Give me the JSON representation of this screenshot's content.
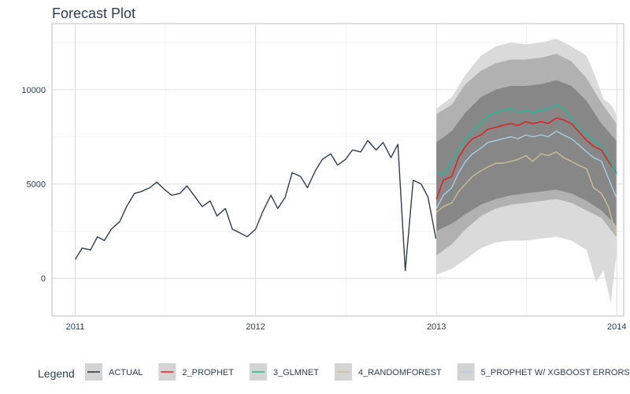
{
  "chart_data": {
    "type": "line",
    "title": "Forecast Plot",
    "xlabel": "",
    "ylabel": "",
    "x_ticks": [
      "2011",
      "2012",
      "2013",
      "2014"
    ],
    "y_ticks": [
      0,
      5000,
      10000
    ],
    "xlim": [
      "2010-11-15",
      "2014-01-15"
    ],
    "ylim": [
      -2000,
      13500
    ],
    "grid": true,
    "legend_position": "bottom",
    "legend_title": "Legend",
    "series": [
      {
        "name": "ACTUAL",
        "color": "#2c3e50",
        "x": [
          "2011-01-01",
          "2011-01-15",
          "2011-02-01",
          "2011-02-15",
          "2011-03-01",
          "2011-03-15",
          "2011-04-01",
          "2011-04-15",
          "2011-05-01",
          "2011-05-15",
          "2011-06-01",
          "2011-06-15",
          "2011-07-01",
          "2011-07-15",
          "2011-08-01",
          "2011-08-15",
          "2011-09-01",
          "2011-09-15",
          "2011-10-01",
          "2011-10-15",
          "2011-11-01",
          "2011-11-15",
          "2011-12-01",
          "2011-12-15",
          "2012-01-01",
          "2012-01-15",
          "2012-02-01",
          "2012-02-15",
          "2012-03-01",
          "2012-03-15",
          "2012-04-01",
          "2012-04-15",
          "2012-05-01",
          "2012-05-15",
          "2012-06-01",
          "2012-06-15",
          "2012-07-01",
          "2012-07-15",
          "2012-08-01",
          "2012-08-15",
          "2012-09-01",
          "2012-09-15",
          "2012-10-01",
          "2012-10-15",
          "2012-10-30",
          "2012-11-15",
          "2012-12-01",
          "2012-12-15",
          "2012-12-31"
        ],
        "values": [
          1000,
          1600,
          1500,
          2200,
          2000,
          2600,
          3000,
          3800,
          4500,
          4600,
          4800,
          5100,
          4700,
          4400,
          4500,
          4900,
          4300,
          3800,
          4100,
          3300,
          3700,
          2600,
          2400,
          2200,
          2600,
          3500,
          4400,
          3700,
          4300,
          5600,
          5400,
          4800,
          5700,
          6300,
          6600,
          6000,
          6300,
          6800,
          6700,
          7300,
          6800,
          7200,
          6400,
          7100,
          400,
          5200,
          5000,
          4300,
          2100
        ]
      },
      {
        "name": "2_PROPHET",
        "color": "#e31a1c",
        "x": [
          "2013-01-01",
          "2013-01-15",
          "2013-02-01",
          "2013-02-15",
          "2013-03-01",
          "2013-03-15",
          "2013-04-01",
          "2013-04-15",
          "2013-05-01",
          "2013-05-15",
          "2013-06-01",
          "2013-06-15",
          "2013-07-01",
          "2013-07-15",
          "2013-08-01",
          "2013-08-15",
          "2013-09-01",
          "2013-09-15",
          "2013-10-01",
          "2013-10-15",
          "2013-11-01",
          "2013-11-15",
          "2013-12-01",
          "2013-12-15",
          "2013-12-31"
        ],
        "values": [
          4200,
          5200,
          5400,
          6400,
          7000,
          7400,
          7600,
          7900,
          8000,
          8100,
          8200,
          8100,
          8300,
          8200,
          8300,
          8200,
          8500,
          8400,
          8200,
          7800,
          7300,
          7000,
          6800,
          6200,
          5600
        ]
      },
      {
        "name": "3_GLMNET",
        "color": "#18bc9c",
        "x": [
          "2013-01-01",
          "2013-01-15",
          "2013-02-01",
          "2013-02-15",
          "2013-03-01",
          "2013-03-15",
          "2013-04-01",
          "2013-04-15",
          "2013-05-01",
          "2013-05-15",
          "2013-06-01",
          "2013-06-15",
          "2013-07-01",
          "2013-07-15",
          "2013-08-01",
          "2013-08-15",
          "2013-09-01",
          "2013-09-15",
          "2013-10-01",
          "2013-10-15",
          "2013-11-01",
          "2013-11-15",
          "2013-12-01",
          "2013-12-15",
          "2013-12-31"
        ],
        "values": [
          5600,
          5500,
          6200,
          6800,
          7400,
          7800,
          8200,
          8600,
          8800,
          8900,
          9000,
          8800,
          8900,
          8800,
          8900,
          9000,
          9200,
          9000,
          8500,
          8000,
          7600,
          7300,
          7000,
          6400,
          5500
        ]
      },
      {
        "name": "4_RANDOMFOREST",
        "color": "#ccbe93",
        "x": [
          "2013-01-01",
          "2013-01-15",
          "2013-02-01",
          "2013-02-15",
          "2013-03-01",
          "2013-03-15",
          "2013-04-01",
          "2013-04-15",
          "2013-05-01",
          "2013-05-15",
          "2013-06-01",
          "2013-06-15",
          "2013-07-01",
          "2013-07-15",
          "2013-08-01",
          "2013-08-15",
          "2013-09-01",
          "2013-09-15",
          "2013-10-01",
          "2013-10-15",
          "2013-11-01",
          "2013-11-15",
          "2013-12-01",
          "2013-12-15",
          "2013-12-31"
        ],
        "values": [
          3500,
          3800,
          4000,
          4600,
          5000,
          5400,
          5700,
          5900,
          6100,
          6100,
          6200,
          6300,
          6500,
          6200,
          6600,
          6500,
          6700,
          6400,
          6200,
          6000,
          5800,
          4800,
          4500,
          3800,
          2300
        ]
      },
      {
        "name": "5_PROPHET W/ XGBOOST ERRORS",
        "color": "#a6cee3",
        "x": [
          "2013-01-01",
          "2013-01-15",
          "2013-02-01",
          "2013-02-15",
          "2013-03-01",
          "2013-03-15",
          "2013-04-01",
          "2013-04-15",
          "2013-05-01",
          "2013-05-15",
          "2013-06-01",
          "2013-06-15",
          "2013-07-01",
          "2013-07-15",
          "2013-08-01",
          "2013-08-15",
          "2013-09-01",
          "2013-09-15",
          "2013-10-01",
          "2013-10-15",
          "2013-11-01",
          "2013-11-15",
          "2013-12-01",
          "2013-12-15",
          "2013-12-31"
        ],
        "values": [
          3700,
          4400,
          4800,
          5600,
          6200,
          6600,
          6900,
          7200,
          7300,
          7400,
          7500,
          7400,
          7600,
          7500,
          7600,
          7500,
          7800,
          7600,
          7400,
          7100,
          6700,
          6400,
          6200,
          5300,
          4300
        ]
      }
    ],
    "bands": [
      {
        "name": "outer-interval",
        "color": "#d4d4d4",
        "x": [
          "2013-01-01",
          "2013-02-01",
          "2013-03-01",
          "2013-04-01",
          "2013-05-01",
          "2013-06-01",
          "2013-07-01",
          "2013-08-01",
          "2013-09-01",
          "2013-10-01",
          "2013-11-01",
          "2013-11-20",
          "2013-12-05",
          "2013-12-20",
          "2013-12-31"
        ],
        "lower": [
          200,
          500,
          1000,
          1600,
          1900,
          2000,
          2000,
          2100,
          2200,
          2000,
          1500,
          -200,
          400,
          -1300,
          1200
        ],
        "upper": [
          9000,
          9600,
          10800,
          11800,
          12300,
          12500,
          12400,
          12500,
          12700,
          12300,
          11800,
          10600,
          9500,
          9200,
          8700
        ]
      },
      {
        "name": "middle-interval",
        "color": "#a9a9a9",
        "x": [
          "2013-01-01",
          "2013-02-01",
          "2013-03-01",
          "2013-04-01",
          "2013-05-01",
          "2013-06-01",
          "2013-07-01",
          "2013-08-01",
          "2013-09-01",
          "2013-10-01",
          "2013-11-01",
          "2013-12-01",
          "2013-12-31"
        ],
        "lower": [
          1200,
          1800,
          2600,
          3300,
          3700,
          3900,
          4000,
          4100,
          4200,
          4000,
          3600,
          3200,
          2200
        ],
        "upper": [
          8700,
          9200,
          10300,
          11000,
          11400,
          11600,
          11600,
          11700,
          11900,
          11500,
          10600,
          9300,
          8200
        ]
      },
      {
        "name": "inner-interval",
        "color": "#808080",
        "x": [
          "2013-01-01",
          "2013-02-01",
          "2013-03-01",
          "2013-04-01",
          "2013-05-01",
          "2013-06-01",
          "2013-07-01",
          "2013-08-01",
          "2013-09-01",
          "2013-10-01",
          "2013-11-01",
          "2013-12-01",
          "2013-12-31"
        ],
        "lower": [
          2500,
          2900,
          3400,
          3900,
          4200,
          4400,
          4500,
          4600,
          4700,
          4500,
          4100,
          3600,
          2800
        ],
        "upper": [
          7200,
          7800,
          8800,
          9600,
          10000,
          10200,
          10200,
          10300,
          10500,
          10200,
          9400,
          8200,
          7300
        ]
      }
    ]
  }
}
